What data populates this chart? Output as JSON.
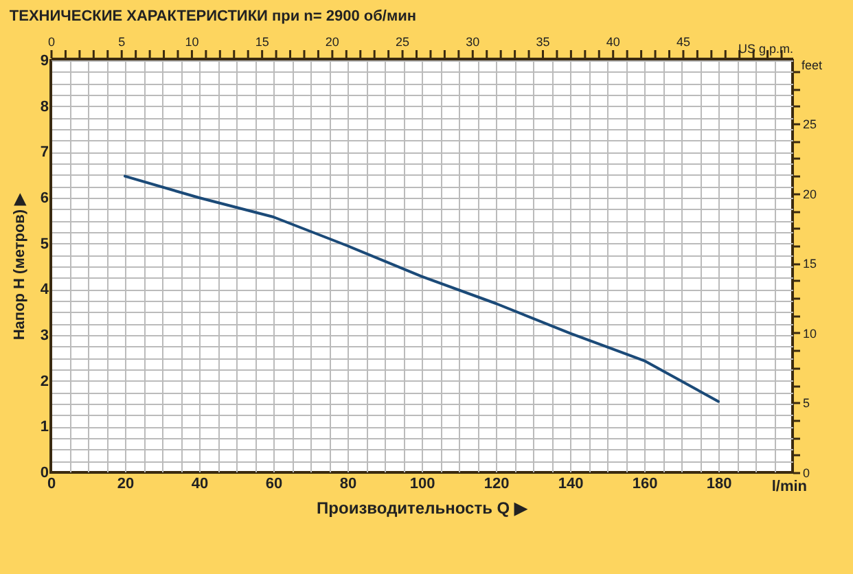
{
  "chart_data": {
    "type": "line",
    "title": "ТЕХНИЧЕСКИЕ ХАРАКТЕРИСТИКИ при n= 2900 об/мин",
    "xlabel": "l/min",
    "ylabel": "Напор H (метров) ▶",
    "y2label": "feet",
    "x2label": "US g.p.m.",
    "annotations": [
      "Производительность Q ▶"
    ],
    "series": [
      {
        "color": "#1b4a78",
        "x": [
          20,
          40,
          60,
          80,
          100,
          120,
          140,
          160,
          180
        ],
        "values": [
          6.47,
          6.0,
          5.58,
          4.95,
          4.28,
          3.69,
          3.04,
          2.44,
          1.55
        ]
      }
    ],
    "xlim": [
      0,
      200
    ],
    "xticks": [
      0,
      {
        "value": 5,
        "label": null
      },
      {
        "value": 10,
        "label": null
      },
      {
        "value": 15,
        "label": null
      },
      20,
      {
        "value": 25,
        "label": null
      },
      {
        "value": 30,
        "label": null
      },
      {
        "value": 35,
        "label": null
      },
      40,
      {
        "value": 45,
        "label": null
      },
      {
        "value": 50,
        "label": null
      },
      {
        "value": 55,
        "label": null
      },
      60,
      {
        "value": 65,
        "label": null
      },
      {
        "value": 70,
        "label": null
      },
      {
        "value": 75,
        "label": null
      },
      80,
      {
        "value": 85,
        "label": null
      },
      {
        "value": 90,
        "label": null
      },
      {
        "value": 95,
        "label": null
      },
      100,
      {
        "value": 105,
        "label": null
      },
      {
        "value": 110,
        "label": null
      },
      {
        "value": 115,
        "label": null
      },
      120,
      {
        "value": 125,
        "label": null
      },
      {
        "value": 130,
        "label": null
      },
      {
        "value": 135,
        "label": null
      },
      140,
      {
        "value": 145,
        "label": null
      },
      {
        "value": 150,
        "label": null
      },
      {
        "value": 155,
        "label": null
      },
      160,
      {
        "value": 165,
        "label": null
      },
      {
        "value": 170,
        "label": null
      },
      {
        "value": 175,
        "label": null
      },
      180,
      {
        "value": 185,
        "label": null
      },
      {
        "value": 190,
        "label": null
      },
      {
        "value": 195,
        "label": null
      }
    ],
    "ylim": [
      0,
      9
    ],
    "yticks": [
      0,
      {
        "value": 0.25,
        "label": null
      },
      {
        "value": 0.5,
        "label": null
      },
      {
        "value": 0.75,
        "label": null
      },
      1,
      {
        "value": 1.25,
        "label": null
      },
      {
        "value": 1.5,
        "label": null
      },
      {
        "value": 1.75,
        "label": null
      },
      2,
      {
        "value": 2.25,
        "label": null
      },
      {
        "value": 2.5,
        "label": null
      },
      {
        "value": 2.75,
        "label": null
      },
      3,
      {
        "value": 3.25,
        "label": null
      },
      {
        "value": 3.5,
        "label": null
      },
      {
        "value": 3.75,
        "label": null
      },
      4,
      {
        "value": 4.25,
        "label": null
      },
      {
        "value": 4.5,
        "label": null
      },
      {
        "value": 4.75,
        "label": null
      },
      5,
      {
        "value": 5.25,
        "label": null
      },
      {
        "value": 5.5,
        "label": null
      },
      {
        "value": 5.75,
        "label": null
      },
      6,
      {
        "value": 6.25,
        "label": null
      },
      {
        "value": 6.5,
        "label": null
      },
      {
        "value": 6.75,
        "label": null
      },
      7,
      {
        "value": 7.25,
        "label": null
      },
      {
        "value": 7.5,
        "label": null
      },
      {
        "value": 7.75,
        "label": null
      },
      8,
      {
        "value": 8.25,
        "label": null
      },
      {
        "value": 8.5,
        "label": null
      },
      {
        "value": 8.75,
        "label": null
      },
      9
    ],
    "y2lim": [
      0,
      29.53
    ],
    "y2ticks": [
      0,
      {
        "value": 1.25,
        "label": null
      },
      {
        "value": 2.5,
        "label": null
      },
      {
        "value": 3.75,
        "label": null
      },
      5,
      {
        "value": 6.25,
        "label": null
      },
      {
        "value": 7.5,
        "label": null
      },
      {
        "value": 8.75,
        "label": null
      },
      10,
      {
        "value": 11.25,
        "label": null
      },
      {
        "value": 12.5,
        "label": null
      },
      {
        "value": 13.75,
        "label": null
      },
      15,
      {
        "value": 16.25,
        "label": null
      },
      {
        "value": 17.5,
        "label": null
      },
      {
        "value": 18.75,
        "label": null
      },
      20,
      {
        "value": 21.25,
        "label": null
      },
      {
        "value": 22.5,
        "label": null
      },
      {
        "value": 23.75,
        "label": null
      },
      25,
      {
        "value": 26.25,
        "label": null
      },
      {
        "value": 27.5,
        "label": null
      },
      {
        "value": 28.75,
        "label": null
      }
    ],
    "x2lim": [
      0,
      52.83
    ],
    "x2ticks": [
      0,
      {
        "value": 1,
        "label": null
      },
      {
        "value": 2,
        "label": null
      },
      {
        "value": 3,
        "label": null
      },
      {
        "value": 4,
        "label": null
      },
      5,
      {
        "value": 6,
        "label": null
      },
      {
        "value": 7,
        "label": null
      },
      {
        "value": 8,
        "label": null
      },
      {
        "value": 9,
        "label": null
      },
      10,
      {
        "value": 11,
        "label": null
      },
      {
        "value": 12,
        "label": null
      },
      {
        "value": 13,
        "label": null
      },
      {
        "value": 14,
        "label": null
      },
      15,
      {
        "value": 16,
        "label": null
      },
      {
        "value": 17,
        "label": null
      },
      {
        "value": 18,
        "label": null
      },
      {
        "value": 19,
        "label": null
      },
      20,
      {
        "value": 21,
        "label": null
      },
      {
        "value": 22,
        "label": null
      },
      {
        "value": 23,
        "label": null
      },
      {
        "value": 24,
        "label": null
      },
      25,
      {
        "value": 26,
        "label": null
      },
      {
        "value": 27,
        "label": null
      },
      {
        "value": 28,
        "label": null
      },
      {
        "value": 29,
        "label": null
      },
      30,
      {
        "value": 31,
        "label": null
      },
      {
        "value": 32,
        "label": null
      },
      {
        "value": 33,
        "label": null
      },
      {
        "value": 34,
        "label": null
      },
      35,
      {
        "value": 36,
        "label": null
      },
      {
        "value": 37,
        "label": null
      },
      {
        "value": 38,
        "label": null
      },
      {
        "value": 39,
        "label": null
      },
      40,
      {
        "value": 41,
        "label": null
      },
      {
        "value": 42,
        "label": null
      },
      {
        "value": 43,
        "label": null
      },
      {
        "value": 44,
        "label": null
      },
      45,
      {
        "value": 46,
        "label": null
      },
      {
        "value": 47,
        "label": null
      },
      {
        "value": 48,
        "label": null
      },
      {
        "value": 49,
        "label": null
      },
      {
        "value": 50,
        "label": null
      },
      {
        "value": 51,
        "label": null
      },
      {
        "value": 52,
        "label": null
      }
    ],
    "grid": true
  }
}
